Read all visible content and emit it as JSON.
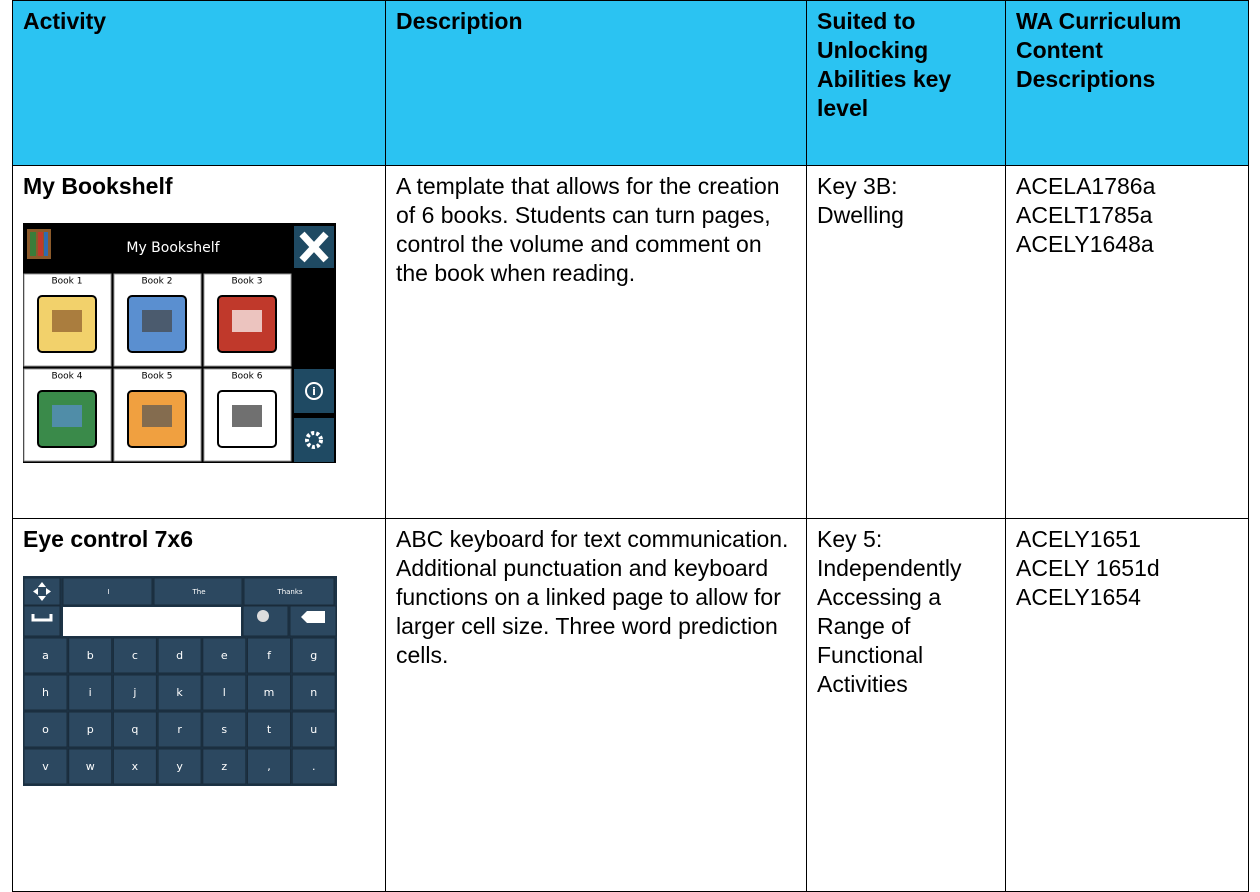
{
  "table": {
    "header": [
      "Activity",
      "Description",
      "Suited to Unlocking Abilities key level",
      "WA Curriculum Content Descriptions"
    ],
    "rows": [
      {
        "activity": "My Bookshelf",
        "description": "A template that allows for the creation of 6 books. Students can turn pages, control the volume and comment on the book when reading.",
        "key_level": [
          "Key 3B:",
          "Dwelling"
        ],
        "codes": [
          "ACELA1786a",
          "ACELT1785a",
          "ACELY1648a"
        ],
        "screenshot": {
          "title": "My Bookshelf",
          "cells": [
            "Book 1",
            "Book 2",
            "Book 3",
            "Book 4",
            "Book 5",
            "Book 6"
          ]
        }
      },
      {
        "activity": "Eye control 7x6",
        "description": "ABC keyboard for text communication. Additional punctuation and keyboard functions on a linked page to allow for larger cell size. Three word prediction cells.",
        "key_level": [
          "Key 5:",
          "Independently",
          "Accessing a",
          "Range of",
          "Functional",
          "Activities"
        ],
        "codes": [
          "ACELY1651",
          "ACELY 1651d",
          "ACELY1654"
        ],
        "screenshot": {
          "predictions": [
            "I",
            "The",
            "Thanks"
          ],
          "keys": [
            "a",
            "b",
            "c",
            "d",
            "e",
            "f",
            "g",
            "h",
            "i",
            "j",
            "k",
            "l",
            "m",
            "n",
            "o",
            "p",
            "q",
            "r",
            "s",
            "t",
            "u",
            "v",
            "w",
            "x",
            "y",
            "z",
            ",",
            "."
          ]
        }
      }
    ]
  }
}
